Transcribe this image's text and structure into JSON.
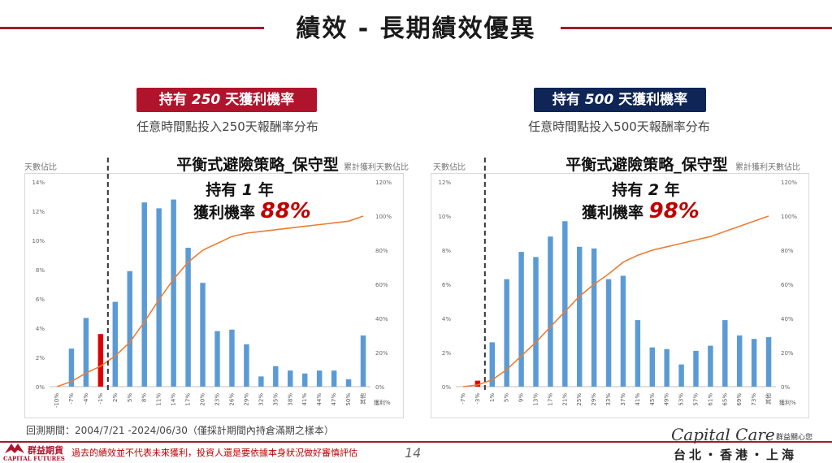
{
  "header": {
    "title": "績效 - 長期績效優異"
  },
  "left": {
    "badge_pre": "持有 ",
    "badge_num": "250",
    "badge_post": " 天獲利機率",
    "subtitle": "任意時間點投入250天報酬率分布",
    "y_left_caption": "天數佔比",
    "y_right_caption": "累計獲利天數佔比",
    "chart_title": "平衡式避險策略_保守型",
    "hold_pre": "持有 ",
    "hold_num": "1",
    "hold_post": " 年",
    "prob_label": "獲利機率 ",
    "prob_value": "88%"
  },
  "right": {
    "badge_pre": "持有 ",
    "badge_num": "500",
    "badge_post": " 天獲利機率",
    "subtitle": "任意時間點投入500天報酬率分布",
    "y_left_caption": "天數佔比",
    "y_right_caption": "累計獲利天數佔比",
    "chart_title": "平衡式避險策略_保守型",
    "hold_pre": "持有 ",
    "hold_num": "2",
    "hold_post": " 年",
    "prob_label": "獲利機率 ",
    "prob_value": "98%"
  },
  "footer": {
    "period": "回測期間：2004/7/21 -2024/06/30（僅採計期間內持倉滿期之樣本）",
    "disclaimer": "過去的績效並不代表未來獲利，投資人還是要依據本身狀況做好審慎評估",
    "page": "14",
    "brand": "Capital Care",
    "brand_cn": "群益關心您",
    "cities": "台北・香港・上海",
    "logo_cn": "群益期貨",
    "logo_en": "CAPITAL FUTURES"
  },
  "colors": {
    "bar": "#5b9bd5",
    "loss_bar": "#e00000",
    "cumulative": "#ed7d31",
    "accent": "#b0142c",
    "navy": "#0f2556"
  },
  "chart_data": [
    {
      "type": "bar",
      "categories": [
        "-10%",
        "-7%",
        "-4%",
        "-1%",
        "2%",
        "5%",
        "8%",
        "11%",
        "14%",
        "17%",
        "20%",
        "23%",
        "26%",
        "29%",
        "32%",
        "35%",
        "38%",
        "41%",
        "44%",
        "47%",
        "50%",
        "其他"
      ],
      "series": [
        {
          "values": [
            0,
            2.6,
            4.7,
            3.6,
            5.8,
            7.9,
            12.6,
            12.2,
            12.8,
            9.5,
            7.1,
            3.8,
            3.9,
            2.9,
            0.7,
            1.4,
            1.1,
            0.9,
            1.1,
            1.1,
            0.5,
            3.5
          ]
        },
        {
          "values": [
            0,
            3,
            8,
            12,
            18,
            26,
            38,
            51,
            63,
            73,
            80,
            84,
            88,
            90,
            91,
            92,
            93,
            94,
            95,
            96,
            97,
            100
          ]
        }
      ],
      "highlight_bar": "-1%",
      "divider_after": "-1%",
      "y_left_ticks": [
        "0%",
        "2%",
        "4%",
        "6%",
        "8%",
        "10%",
        "12%",
        "14%"
      ],
      "y_right_ticks": [
        "0%",
        "20%",
        "40%",
        "60%",
        "80%",
        "100%",
        "120%"
      ],
      "ylim_left": [
        0,
        14
      ],
      "ylim_right": [
        0,
        120
      ],
      "y_right_end_label": "獲利%"
    },
    {
      "type": "bar",
      "categories": [
        "-7%",
        "-3%",
        "1%",
        "5%",
        "9%",
        "13%",
        "17%",
        "21%",
        "25%",
        "29%",
        "33%",
        "37%",
        "41%",
        "45%",
        "49%",
        "53%",
        "57%",
        "61%",
        "65%",
        "69%",
        "73%",
        "其他"
      ],
      "series": [
        {
          "values": [
            0,
            0.35,
            2.6,
            6.3,
            7.9,
            7.6,
            8.8,
            9.7,
            8.2,
            8.1,
            6.3,
            6.5,
            3.9,
            2.3,
            2.2,
            1.3,
            2.1,
            2.4,
            3.9,
            3.0,
            2.8,
            2.9
          ]
        },
        {
          "values": [
            0,
            1,
            4,
            10,
            18,
            26,
            35,
            44,
            53,
            60,
            66,
            73,
            77,
            80,
            82,
            84,
            86,
            88,
            91,
            94,
            97,
            100
          ]
        }
      ],
      "highlight_bar": "-3%",
      "divider_after": "-3%",
      "y_left_ticks": [
        "0%",
        "2%",
        "4%",
        "6%",
        "8%",
        "10%",
        "12%"
      ],
      "y_right_ticks": [
        "0%",
        "20%",
        "40%",
        "60%",
        "80%",
        "100%",
        "120%"
      ],
      "ylim_left": [
        0,
        12
      ],
      "ylim_right": [
        0,
        120
      ],
      "y_right_end_label": "獲利%"
    }
  ]
}
